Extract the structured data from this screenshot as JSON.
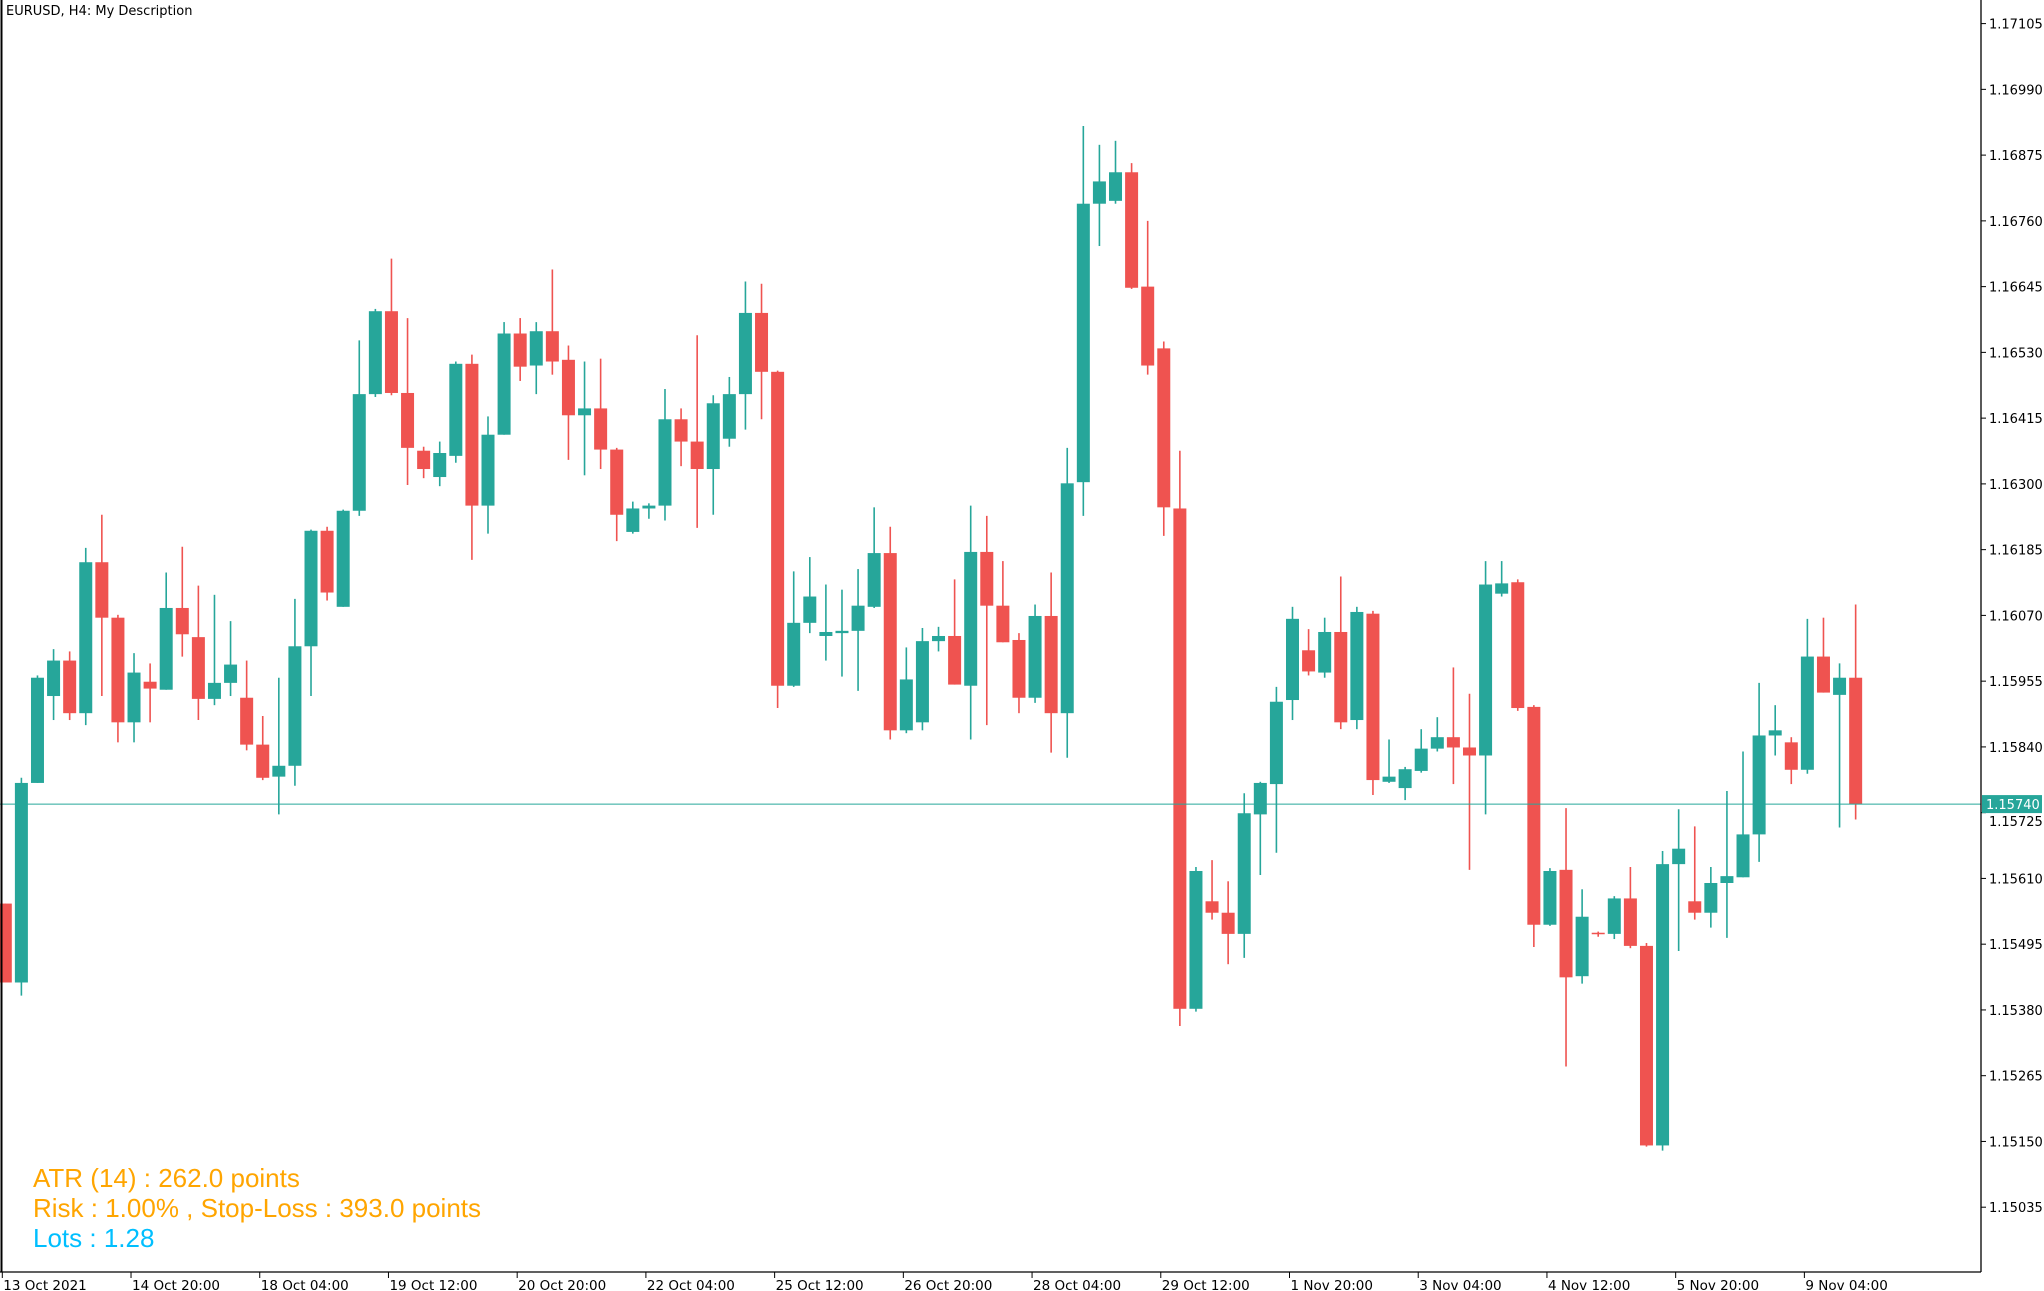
{
  "header": {
    "title": "EURUSD, H4:  My Description"
  },
  "info_panel": {
    "atr": "ATR (14) : 262.0 points",
    "risk": "Risk : 1.00% , Stop-Loss : 393.0 points",
    "lots": "Lots : 1.28"
  },
  "colors": {
    "bull": "#26A69A",
    "bear": "#EF5350",
    "info_text": "#FFA500",
    "lots_text": "#00BFFF",
    "price_line": "#26A69A",
    "axis": "#000000",
    "background": "#FFFFFF"
  },
  "chart_data": {
    "type": "candlestick",
    "symbol": "EURUSD",
    "timeframe": "H4",
    "ylim": [
      1.1496,
      1.1715
    ],
    "grid": false,
    "current_price": "1.15740",
    "y_ticks": [
      "1.17105",
      "1.16990",
      "1.16875",
      "1.16760",
      "1.16645",
      "1.16530",
      "1.16415",
      "1.16300",
      "1.16185",
      "1.16070",
      "1.15955",
      "1.15840",
      "1.15725",
      "1.15610",
      "1.15495",
      "1.15380",
      "1.15265",
      "1.15150",
      "1.15035"
    ],
    "x_ticks": [
      {
        "label": "13 Oct 2021",
        "index": 0
      },
      {
        "label": "14 Oct 20:00",
        "index": 8
      },
      {
        "label": "18 Oct 04:00",
        "index": 16
      },
      {
        "label": "19 Oct 12:00",
        "index": 24
      },
      {
        "label": "20 Oct 20:00",
        "index": 32
      },
      {
        "label": "22 Oct 04:00",
        "index": 40
      },
      {
        "label": "25 Oct 12:00",
        "index": 48
      },
      {
        "label": "26 Oct 20:00",
        "index": 56
      },
      {
        "label": "28 Oct 04:00",
        "index": 64
      },
      {
        "label": "29 Oct 12:00",
        "index": 72
      },
      {
        "label": "1 Nov 20:00",
        "index": 80
      },
      {
        "label": "3 Nov 04:00",
        "index": 88
      },
      {
        "label": "4 Nov 12:00",
        "index": 96
      },
      {
        "label": "5 Nov 20:00",
        "index": 104
      },
      {
        "label": "9 Nov 04:00",
        "index": 112
      }
    ],
    "ohlc_columns": [
      "open",
      "high",
      "low",
      "close"
    ],
    "candles": [
      [
        1.15566,
        1.15566,
        1.15428,
        1.15428
      ],
      [
        1.15428,
        1.15786,
        1.15405,
        1.15777
      ],
      [
        1.15777,
        1.15965,
        1.15777,
        1.15961
      ],
      [
        1.15929,
        1.16011,
        1.15887,
        1.15991
      ],
      [
        1.15991,
        1.16007,
        1.15887,
        1.15899
      ],
      [
        1.15899,
        1.16188,
        1.15878,
        1.16163
      ],
      [
        1.16163,
        1.16246,
        1.15929,
        1.16066
      ],
      [
        1.16066,
        1.16071,
        1.15848,
        1.15883
      ],
      [
        1.15883,
        1.16004,
        1.15848,
        1.1597
      ],
      [
        1.15954,
        1.15986,
        1.15883,
        1.15942
      ],
      [
        1.1594,
        1.16145,
        1.1594,
        1.16083
      ],
      [
        1.16083,
        1.1619,
        1.15998,
        1.16037
      ],
      [
        1.16032,
        1.16122,
        1.15887,
        1.15924
      ],
      [
        1.15924,
        1.16106,
        1.15913,
        1.15952
      ],
      [
        1.15952,
        1.1606,
        1.15929,
        1.15984
      ],
      [
        1.15926,
        1.15991,
        1.15834,
        1.15844
      ],
      [
        1.15844,
        1.15894,
        1.15782,
        1.15786
      ],
      [
        1.15788,
        1.15961,
        1.15722,
        1.15807
      ],
      [
        1.15807,
        1.16099,
        1.15772,
        1.16016
      ],
      [
        1.16016,
        1.1622,
        1.15929,
        1.16218
      ],
      [
        1.16218,
        1.16225,
        1.16096,
        1.1611
      ],
      [
        1.16085,
        1.16255,
        1.16085,
        1.16253
      ],
      [
        1.16253,
        1.16551,
        1.16244,
        1.16457
      ],
      [
        1.16457,
        1.16606,
        1.16452,
        1.16602
      ],
      [
        1.16602,
        1.16694,
        1.16455,
        1.16459
      ],
      [
        1.16459,
        1.1659,
        1.16298,
        1.16363
      ],
      [
        1.16358,
        1.16365,
        1.1631,
        1.16326
      ],
      [
        1.16312,
        1.16374,
        1.16296,
        1.16354
      ],
      [
        1.16349,
        1.16514,
        1.16337,
        1.1651
      ],
      [
        1.1651,
        1.16526,
        1.16167,
        1.16262
      ],
      [
        1.16262,
        1.16418,
        1.16213,
        1.16386
      ],
      [
        1.16386,
        1.16583,
        1.16386,
        1.16563
      ],
      [
        1.16563,
        1.1659,
        1.1648,
        1.16505
      ],
      [
        1.16507,
        1.16583,
        1.16457,
        1.16567
      ],
      [
        1.16567,
        1.16675,
        1.16491,
        1.16514
      ],
      [
        1.16517,
        1.16542,
        1.16342,
        1.1642
      ],
      [
        1.1642,
        1.16514,
        1.16315,
        1.16432
      ],
      [
        1.16432,
        1.16519,
        1.16326,
        1.1636
      ],
      [
        1.1636,
        1.16363,
        1.162,
        1.16246
      ],
      [
        1.16216,
        1.16269,
        1.16213,
        1.16257
      ],
      [
        1.16257,
        1.16266,
        1.16239,
        1.16262
      ],
      [
        1.16262,
        1.16466,
        1.16236,
        1.16413
      ],
      [
        1.16413,
        1.16432,
        1.16331,
        1.16374
      ],
      [
        1.16374,
        1.1656,
        1.16223,
        1.16326
      ],
      [
        1.16326,
        1.16455,
        1.16246,
        1.16441
      ],
      [
        1.16379,
        1.16487,
        1.16365,
        1.16457
      ],
      [
        1.16457,
        1.16654,
        1.16395,
        1.16599
      ],
      [
        1.16599,
        1.1665,
        1.16413,
        1.16496
      ],
      [
        1.16496,
        1.16498,
        1.15908,
        1.15947
      ],
      [
        1.15947,
        1.16147,
        1.15945,
        1.16057
      ],
      [
        1.16057,
        1.16172,
        1.16039,
        1.16103
      ],
      [
        1.16034,
        1.16124,
        1.15991,
        1.16041
      ],
      [
        1.16039,
        1.16115,
        1.15963,
        1.16043
      ],
      [
        1.16043,
        1.16151,
        1.15938,
        1.16087
      ],
      [
        1.16085,
        1.16259,
        1.16083,
        1.16179
      ],
      [
        1.16179,
        1.16225,
        1.15853,
        1.15869
      ],
      [
        1.15869,
        1.16014,
        1.15864,
        1.15958
      ],
      [
        1.15883,
        1.16048,
        1.15869,
        1.16025
      ],
      [
        1.16025,
        1.1605,
        1.16007,
        1.16034
      ],
      [
        1.16034,
        1.16133,
        1.15949,
        1.15949
      ],
      [
        1.15947,
        1.16262,
        1.15853,
        1.16181
      ],
      [
        1.16181,
        1.16244,
        1.15878,
        1.16087
      ],
      [
        1.16087,
        1.16165,
        1.16023,
        1.16023
      ],
      [
        1.16027,
        1.16039,
        1.15899,
        1.15926
      ],
      [
        1.15926,
        1.16089,
        1.15917,
        1.16069
      ],
      [
        1.16069,
        1.16145,
        1.1583,
        1.15899
      ],
      [
        1.15899,
        1.16363,
        1.15821,
        1.16301
      ],
      [
        1.16303,
        1.16926,
        1.16244,
        1.1679
      ],
      [
        1.1679,
        1.16893,
        1.16716,
        1.16829
      ],
      [
        1.16795,
        1.169,
        1.1679,
        1.16845
      ],
      [
        1.16845,
        1.16861,
        1.16641,
        1.16643
      ],
      [
        1.16645,
        1.1676,
        1.16491,
        1.16507
      ],
      [
        1.16537,
        1.16549,
        1.16209,
        1.16259
      ],
      [
        1.16257,
        1.16358,
        1.15352,
        1.15382
      ],
      [
        1.15382,
        1.1563,
        1.15377,
        1.15623
      ],
      [
        1.1557,
        1.15642,
        1.15538,
        1.1555
      ],
      [
        1.1555,
        1.15605,
        1.1546,
        1.15513
      ],
      [
        1.15513,
        1.15759,
        1.15471,
        1.15724
      ],
      [
        1.15722,
        1.15779,
        1.15616,
        1.15777
      ],
      [
        1.15775,
        1.15945,
        1.15655,
        1.15919
      ],
      [
        1.15922,
        1.16085,
        1.15887,
        1.16064
      ],
      [
        1.16009,
        1.16046,
        1.15965,
        1.15972
      ],
      [
        1.1597,
        1.16066,
        1.15961,
        1.16041
      ],
      [
        1.16041,
        1.16138,
        1.15871,
        1.15883
      ],
      [
        1.15887,
        1.16085,
        1.15871,
        1.16076
      ],
      [
        1.16073,
        1.16078,
        1.15756,
        1.15782
      ],
      [
        1.15779,
        1.15853,
        1.15777,
        1.15788
      ],
      [
        1.15768,
        1.15805,
        1.15747,
        1.15801
      ],
      [
        1.15798,
        1.15871,
        1.15795,
        1.15837
      ],
      [
        1.15837,
        1.15892,
        1.15832,
        1.15857
      ],
      [
        1.15857,
        1.15979,
        1.15775,
        1.15839
      ],
      [
        1.15839,
        1.15933,
        1.15625,
        1.15825
      ],
      [
        1.15825,
        1.16165,
        1.15722,
        1.16124
      ],
      [
        1.16108,
        1.16165,
        1.16103,
        1.16126
      ],
      [
        1.16128,
        1.16133,
        1.15903,
        1.15908
      ],
      [
        1.1591,
        1.15913,
        1.1549,
        1.15529
      ],
      [
        1.15529,
        1.15628,
        1.15527,
        1.15623
      ],
      [
        1.15625,
        1.15733,
        1.15281,
        1.15437
      ],
      [
        1.15439,
        1.15591,
        1.15426,
        1.15543
      ],
      [
        1.15515,
        1.15517,
        1.15508,
        1.15513
      ],
      [
        1.15513,
        1.15579,
        1.15504,
        1.15575
      ],
      [
        1.15575,
        1.1563,
        1.15488,
        1.15492
      ],
      [
        1.15492,
        1.15497,
        1.15141,
        1.15143
      ],
      [
        1.15143,
        1.15658,
        1.15134,
        1.15635
      ],
      [
        1.15635,
        1.15731,
        1.15483,
        1.15662
      ],
      [
        1.1557,
        1.15701,
        1.15538,
        1.1555
      ],
      [
        1.1555,
        1.1563,
        1.15524,
        1.15602
      ],
      [
        1.15602,
        1.15763,
        1.15506,
        1.15614
      ],
      [
        1.15612,
        1.15832,
        1.15612,
        1.15687
      ],
      [
        1.15687,
        1.15952,
        1.15639,
        1.1586
      ],
      [
        1.1586,
        1.15913,
        1.15825,
        1.15869
      ],
      [
        1.15848,
        1.15857,
        1.15775,
        1.158
      ],
      [
        1.158,
        1.16064,
        1.15793,
        1.15998
      ],
      [
        1.15998,
        1.16066,
        1.15935,
        1.15935
      ],
      [
        1.15931,
        1.15986,
        1.15699,
        1.15961
      ],
      [
        1.15961,
        1.16089,
        1.15713,
        1.1574
      ]
    ]
  }
}
